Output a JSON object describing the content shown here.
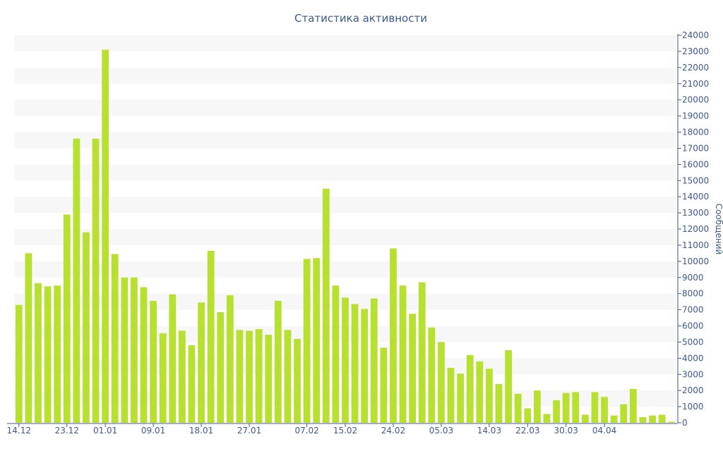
{
  "chart_data": {
    "type": "bar",
    "title": "Статистика активности",
    "ylabel": "Сообщений",
    "xlabel": "",
    "ylim": [
      0,
      24000
    ],
    "y_tick_step": 1000,
    "y_axis_side": "right",
    "grid": "alternating-bands",
    "bar_color": "#b8e030",
    "text_color": "#3d5a8c",
    "band_color": "#f7f7f7",
    "x_tick_labels": [
      {
        "label": "14.12",
        "index": 0
      },
      {
        "label": "23.12",
        "index": 5
      },
      {
        "label": "01.01",
        "index": 9
      },
      {
        "label": "09.01",
        "index": 14
      },
      {
        "label": "18.01",
        "index": 19
      },
      {
        "label": "27.01",
        "index": 24
      },
      {
        "label": "07.02",
        "index": 30
      },
      {
        "label": "15.02",
        "index": 34
      },
      {
        "label": "24.02",
        "index": 39
      },
      {
        "label": "05.03",
        "index": 44
      },
      {
        "label": "14.03",
        "index": 49
      },
      {
        "label": "22.03",
        "index": 53
      },
      {
        "label": "30.03",
        "index": 57
      },
      {
        "label": "04.04",
        "index": 61
      }
    ],
    "values": [
      7300,
      10500,
      8650,
      8450,
      8500,
      12900,
      17600,
      11800,
      17600,
      23100,
      10450,
      9000,
      9000,
      8400,
      7550,
      5550,
      7950,
      5700,
      4800,
      7450,
      10650,
      6850,
      7900,
      5750,
      5700,
      5800,
      5450,
      7550,
      5750,
      5200,
      10150,
      10200,
      14500,
      8500,
      7750,
      7350,
      7050,
      7700,
      4650,
      10800,
      8500,
      6750,
      8700,
      5900,
      5000,
      3400,
      3050,
      4200,
      3800,
      3350,
      2400,
      4500,
      1800,
      900,
      2000,
      550,
      1400,
      1850,
      1900,
      500,
      1900,
      1600,
      450,
      1150,
      2100,
      350,
      450,
      500,
      60
    ]
  }
}
